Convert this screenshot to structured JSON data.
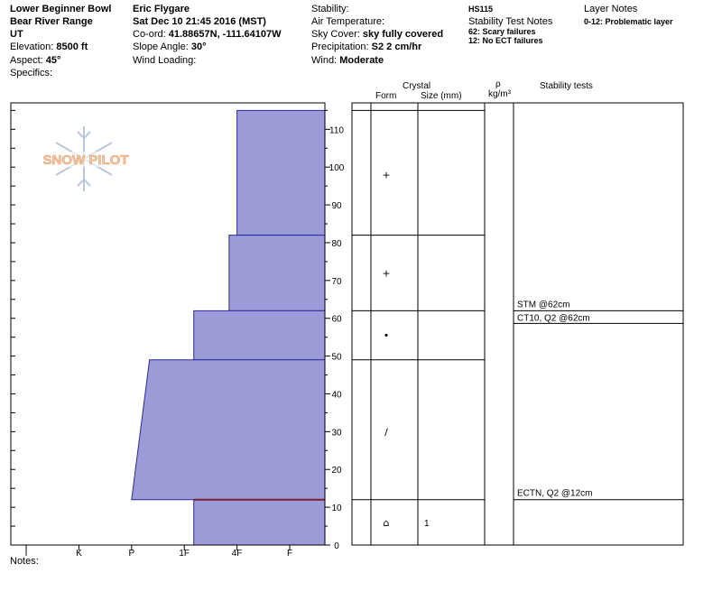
{
  "header": {
    "location": [
      "Lower Beginner Bowl",
      "Bear River Range",
      "UT"
    ],
    "elevation_label": "Elevation:",
    "elevation_value": "8500 ft",
    "aspect_label": "Aspect:",
    "aspect_value": "45°",
    "specifics_label": "Specifics:",
    "observer": "Eric Flygare",
    "datetime": "Sat Dec 10 21:45 2016 (MST)",
    "coord_label": "Co-ord:",
    "coord_value": "41.88657N, -111.64107W",
    "slope_label": "Slope Angle:",
    "slope_value": "30°",
    "wind_loading_label": "Wind Loading:",
    "stability_label": "Stability:",
    "air_temp_label": "Air Temperature:",
    "sky_label": "Sky Cover:",
    "sky_value": "sky fully covered",
    "precip_label": "Precipitation:",
    "precip_value": "S2 2 cm/hr",
    "wind_label": "Wind:",
    "wind_value": "Moderate",
    "hs": "HS115",
    "stability_notes_label": "Stability Test Notes",
    "stability_notes": [
      "62: Scary failures",
      "12: No ECT failures"
    ],
    "layer_notes_label": "Layer Notes",
    "layer_notes": [
      "0-12: Problematic layer"
    ]
  },
  "watermark": "SNOW PILOT",
  "columns": {
    "crystal": "Crystal",
    "form": "Form",
    "size": "Size (mm)",
    "rho": "ρ",
    "rho_unit": "kg/m³",
    "stability": "Stability tests"
  },
  "notes_label": "Notes:",
  "colors": {
    "fill": "#9b9bd7",
    "edge": "#2a2aa0",
    "weak_layer": "#7a1f2b",
    "grid": "#000000"
  },
  "chart_data": {
    "type": "area",
    "title": "",
    "ylabel": "",
    "ylim": [
      0,
      117
    ],
    "y_ticks": [
      0,
      10,
      20,
      30,
      40,
      50,
      60,
      70,
      80,
      90,
      100,
      110
    ],
    "hardness_ticks": [
      "I",
      "K",
      "P",
      "1F",
      "4F",
      "F"
    ],
    "layer_boundaries": [
      115,
      82,
      62,
      49,
      12,
      0
    ],
    "hardness_profile": [
      {
        "top": 115,
        "bottom": 82,
        "hardness": 5.0
      },
      {
        "top": 82,
        "bottom": 62,
        "hardness": 4.85
      },
      {
        "top": 62,
        "bottom": 49,
        "hardness": 4.18
      },
      {
        "top": 49,
        "bottom": 12,
        "hardness_top": 3.34,
        "hardness_bottom": 3.0
      },
      {
        "top": 12,
        "bottom": 0,
        "hardness": 4.18
      }
    ],
    "weak_layer_height": 12,
    "crystals": [
      {
        "height": 98,
        "form": "+",
        "size": ""
      },
      {
        "height": 72,
        "form": "+",
        "size": ""
      },
      {
        "height": 55.5,
        "form": "•",
        "size": ""
      },
      {
        "height": 30,
        "form": "/",
        "size": ""
      },
      {
        "height": 6,
        "form": "⌂",
        "size": "1"
      }
    ],
    "stability_tests": [
      {
        "height": 62,
        "label": "STM @62cm",
        "position": "above"
      },
      {
        "height": 62,
        "label": "CT10, Q2 @62cm",
        "position": "below"
      },
      {
        "height": 12,
        "label": "ECTN, Q2 @12cm",
        "position": "above"
      }
    ]
  }
}
